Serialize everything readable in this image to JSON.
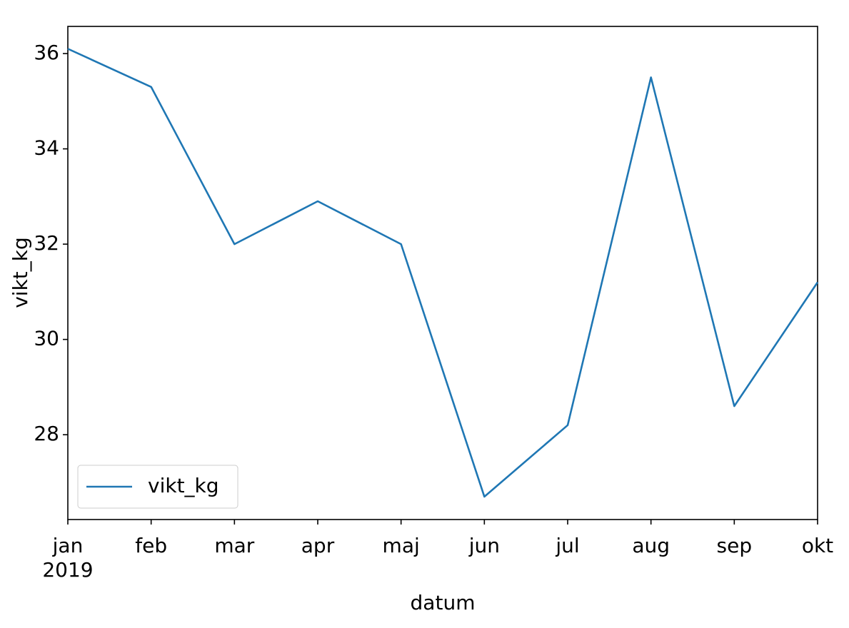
{
  "chart_data": {
    "type": "line",
    "categories": [
      "jan",
      "feb",
      "mar",
      "apr",
      "maj",
      "jun",
      "jul",
      "aug",
      "sep",
      "okt"
    ],
    "year_label": "2019",
    "series": [
      {
        "name": "vikt_kg",
        "color": "#1f77b4",
        "values": [
          36.1,
          35.3,
          32.0,
          32.9,
          32.0,
          26.7,
          28.2,
          35.5,
          28.6,
          31.2
        ]
      }
    ],
    "ylim": [
      26.22,
      36.57
    ],
    "yticks": [
      28,
      30,
      32,
      34,
      36
    ],
    "xlabel": "datum",
    "ylabel": "vikt_kg",
    "legend": "lower left",
    "grid": false
  }
}
